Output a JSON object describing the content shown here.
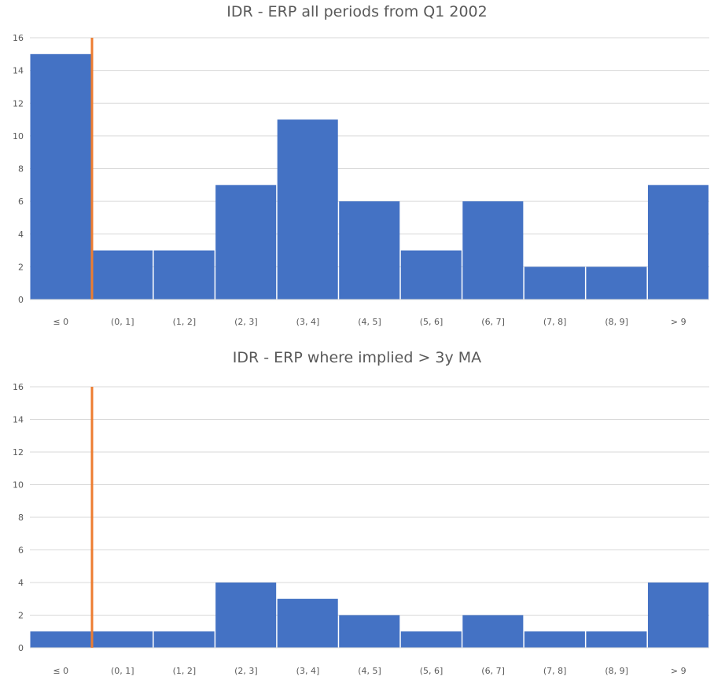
{
  "chart_data": [
    {
      "type": "bar",
      "title": "IDR - ERP all periods from Q1 2002",
      "categories": [
        "≤ 0",
        "(0, 1]",
        "(1, 2]",
        "(2, 3]",
        "(3, 4]",
        "(4, 5]",
        "(5, 6]",
        "(6, 7]",
        "(7, 8]",
        "(8, 9]",
        "> 9"
      ],
      "values": [
        15,
        3,
        3,
        7,
        11,
        6,
        3,
        6,
        2,
        2,
        7
      ],
      "ylim": [
        0,
        16
      ],
      "yticks": [
        0,
        2,
        4,
        6,
        8,
        10,
        12,
        14,
        16
      ],
      "grid": true,
      "bar_color": "#4472C4",
      "marker_line_color": "#ED7D31"
    },
    {
      "type": "bar",
      "title": "IDR - ERP where implied > 3y MA",
      "categories": [
        "≤ 0",
        "(0, 1]",
        "(1, 2]",
        "(2, 3]",
        "(3, 4]",
        "(4, 5]",
        "(5, 6]",
        "(6, 7]",
        "(7, 8]",
        "(8, 9]",
        "> 9"
      ],
      "values": [
        1,
        1,
        1,
        4,
        3,
        2,
        1,
        2,
        1,
        1,
        4
      ],
      "ylim": [
        0,
        16
      ],
      "yticks": [
        0,
        2,
        4,
        6,
        8,
        10,
        12,
        14,
        16
      ],
      "grid": true,
      "bar_color": "#4472C4",
      "marker_line_color": "#ED7D31"
    }
  ]
}
